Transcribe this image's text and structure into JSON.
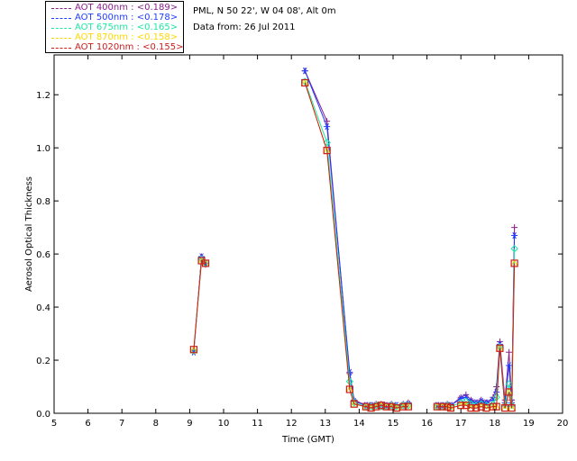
{
  "header": {
    "location": "PML, N 50 22', W 04 08', Alt 0m",
    "date": "Data from: 26 Jul 2011"
  },
  "legend": [
    {
      "label": "AOT  400nm : <0.189>",
      "color": "#8a1e8a"
    },
    {
      "label": "AOT  500nm : <0.178>",
      "color": "#1e3cff"
    },
    {
      "label": "AOT  675nm : <0.165>",
      "color": "#1ee6a0"
    },
    {
      "label": "AOT  870nm : <0.158>",
      "color": "#ffd700"
    },
    {
      "label": "AOT 1020nm : <0.155>",
      "color": "#c81e1e"
    }
  ],
  "chart_data": {
    "type": "line",
    "title": "",
    "xlabel": "Time (GMT)",
    "ylabel": "Aerosol Optical Thickness",
    "xlim": [
      5,
      20
    ],
    "ylim": [
      0,
      1.35
    ],
    "xticks": [
      "5",
      "6",
      "7",
      "8",
      "9",
      "10",
      "11",
      "12",
      "13",
      "14",
      "15",
      "16",
      "17",
      "18",
      "19",
      "20"
    ],
    "yticks": [
      "0.0",
      "0.2",
      "0.4",
      "0.6",
      "0.8",
      "1.0",
      "1.2"
    ],
    "grid": false,
    "legend_position": "top-left",
    "series": [
      {
        "name": "AOT  400nm : <0.189>",
        "marker": "plus",
        "points": [
          [
            9.12,
            0.235
          ],
          [
            9.35,
            0.59
          ],
          [
            9.47,
            0.56
          ],
          [
            12.4,
            1.29
          ],
          [
            13.05,
            1.1
          ],
          [
            13.72,
            0.15
          ],
          [
            13.85,
            0.05
          ],
          [
            14.2,
            0.03
          ],
          [
            14.35,
            0.03
          ],
          [
            14.5,
            0.035
          ],
          [
            14.65,
            0.035
          ],
          [
            14.8,
            0.03
          ],
          [
            14.95,
            0.035
          ],
          [
            15.1,
            0.03
          ],
          [
            15.3,
            0.035
          ],
          [
            15.45,
            0.04
          ],
          [
            16.3,
            0.03
          ],
          [
            16.45,
            0.03
          ],
          [
            16.6,
            0.035
          ],
          [
            16.7,
            0.03
          ],
          [
            17.0,
            0.06
          ],
          [
            17.15,
            0.07
          ],
          [
            17.3,
            0.05
          ],
          [
            17.45,
            0.04
          ],
          [
            17.6,
            0.05
          ],
          [
            17.75,
            0.04
          ],
          [
            17.95,
            0.06
          ],
          [
            18.05,
            0.1
          ],
          [
            18.15,
            0.27
          ],
          [
            18.3,
            0.05
          ],
          [
            18.42,
            0.23
          ],
          [
            18.5,
            0.05
          ],
          [
            18.58,
            0.7
          ]
        ]
      },
      {
        "name": "AOT  500nm : <0.178>",
        "marker": "asterisk",
        "points": [
          [
            9.12,
            0.23
          ],
          [
            9.35,
            0.59
          ],
          [
            9.47,
            0.565
          ],
          [
            12.4,
            1.29
          ],
          [
            13.05,
            1.08
          ],
          [
            13.72,
            0.155
          ],
          [
            13.85,
            0.045
          ],
          [
            14.2,
            0.03
          ],
          [
            14.35,
            0.03
          ],
          [
            14.5,
            0.03
          ],
          [
            14.65,
            0.03
          ],
          [
            14.8,
            0.03
          ],
          [
            14.95,
            0.03
          ],
          [
            15.1,
            0.03
          ],
          [
            15.3,
            0.03
          ],
          [
            15.45,
            0.035
          ],
          [
            16.3,
            0.03
          ],
          [
            16.45,
            0.03
          ],
          [
            16.6,
            0.03
          ],
          [
            16.7,
            0.03
          ],
          [
            17.0,
            0.055
          ],
          [
            17.15,
            0.06
          ],
          [
            17.3,
            0.045
          ],
          [
            17.45,
            0.04
          ],
          [
            17.6,
            0.045
          ],
          [
            17.75,
            0.04
          ],
          [
            17.95,
            0.05
          ],
          [
            18.05,
            0.08
          ],
          [
            18.15,
            0.26
          ],
          [
            18.3,
            0.04
          ],
          [
            18.42,
            0.18
          ],
          [
            18.5,
            0.04
          ],
          [
            18.58,
            0.67
          ]
        ]
      },
      {
        "name": "AOT  675nm : <0.165>",
        "marker": "diamond",
        "points": [
          [
            9.12,
            0.235
          ],
          [
            9.35,
            0.58
          ],
          [
            9.47,
            0.565
          ],
          [
            12.4,
            1.25
          ],
          [
            13.05,
            1.02
          ],
          [
            13.72,
            0.12
          ],
          [
            13.85,
            0.04
          ],
          [
            14.2,
            0.025
          ],
          [
            14.35,
            0.025
          ],
          [
            14.5,
            0.03
          ],
          [
            14.65,
            0.025
          ],
          [
            14.8,
            0.025
          ],
          [
            14.95,
            0.03
          ],
          [
            15.1,
            0.025
          ],
          [
            15.3,
            0.03
          ],
          [
            15.45,
            0.03
          ],
          [
            16.3,
            0.025
          ],
          [
            16.45,
            0.025
          ],
          [
            16.6,
            0.03
          ],
          [
            16.7,
            0.025
          ],
          [
            17.0,
            0.04
          ],
          [
            17.15,
            0.045
          ],
          [
            17.3,
            0.035
          ],
          [
            17.45,
            0.03
          ],
          [
            17.6,
            0.035
          ],
          [
            17.75,
            0.03
          ],
          [
            17.95,
            0.035
          ],
          [
            18.05,
            0.06
          ],
          [
            18.15,
            0.25
          ],
          [
            18.3,
            0.03
          ],
          [
            18.42,
            0.11
          ],
          [
            18.5,
            0.03
          ],
          [
            18.58,
            0.62
          ]
        ]
      },
      {
        "name": "AOT  870nm : <0.158>",
        "marker": "triangle",
        "points": [
          [
            9.12,
            0.24
          ],
          [
            9.35,
            0.575
          ],
          [
            9.47,
            0.565
          ],
          [
            12.4,
            1.245
          ],
          [
            13.05,
            0.99
          ],
          [
            13.72,
            0.09
          ],
          [
            13.85,
            0.035
          ],
          [
            14.2,
            0.025
          ],
          [
            14.35,
            0.02
          ],
          [
            14.5,
            0.025
          ],
          [
            14.65,
            0.03
          ],
          [
            14.8,
            0.025
          ],
          [
            14.95,
            0.025
          ],
          [
            15.1,
            0.02
          ],
          [
            15.3,
            0.025
          ],
          [
            15.45,
            0.025
          ],
          [
            16.3,
            0.025
          ],
          [
            16.45,
            0.025
          ],
          [
            16.6,
            0.025
          ],
          [
            16.7,
            0.02
          ],
          [
            17.0,
            0.03
          ],
          [
            17.15,
            0.03
          ],
          [
            17.3,
            0.02
          ],
          [
            17.45,
            0.02
          ],
          [
            17.6,
            0.025
          ],
          [
            17.75,
            0.02
          ],
          [
            17.95,
            0.025
          ],
          [
            18.05,
            0.025
          ],
          [
            18.15,
            0.245
          ],
          [
            18.3,
            0.02
          ],
          [
            18.42,
            0.08
          ],
          [
            18.5,
            0.02
          ],
          [
            18.58,
            0.565
          ]
        ]
      },
      {
        "name": "AOT 1020nm : <0.155>",
        "marker": "square",
        "points": [
          [
            9.12,
            0.24
          ],
          [
            9.35,
            0.575
          ],
          [
            9.47,
            0.565
          ],
          [
            12.4,
            1.245
          ],
          [
            13.05,
            0.99
          ],
          [
            13.72,
            0.09
          ],
          [
            13.85,
            0.035
          ],
          [
            14.2,
            0.025
          ],
          [
            14.35,
            0.02
          ],
          [
            14.5,
            0.025
          ],
          [
            14.65,
            0.03
          ],
          [
            14.8,
            0.025
          ],
          [
            14.95,
            0.025
          ],
          [
            15.1,
            0.02
          ],
          [
            15.3,
            0.025
          ],
          [
            15.45,
            0.025
          ],
          [
            16.3,
            0.025
          ],
          [
            16.45,
            0.025
          ],
          [
            16.6,
            0.025
          ],
          [
            16.7,
            0.02
          ],
          [
            17.0,
            0.03
          ],
          [
            17.15,
            0.03
          ],
          [
            17.3,
            0.02
          ],
          [
            17.45,
            0.02
          ],
          [
            17.6,
            0.025
          ],
          [
            17.75,
            0.02
          ],
          [
            17.95,
            0.025
          ],
          [
            18.05,
            0.025
          ],
          [
            18.15,
            0.245
          ],
          [
            18.3,
            0.02
          ],
          [
            18.42,
            0.08
          ],
          [
            18.5,
            0.02
          ],
          [
            18.58,
            0.565
          ]
        ]
      }
    ]
  }
}
